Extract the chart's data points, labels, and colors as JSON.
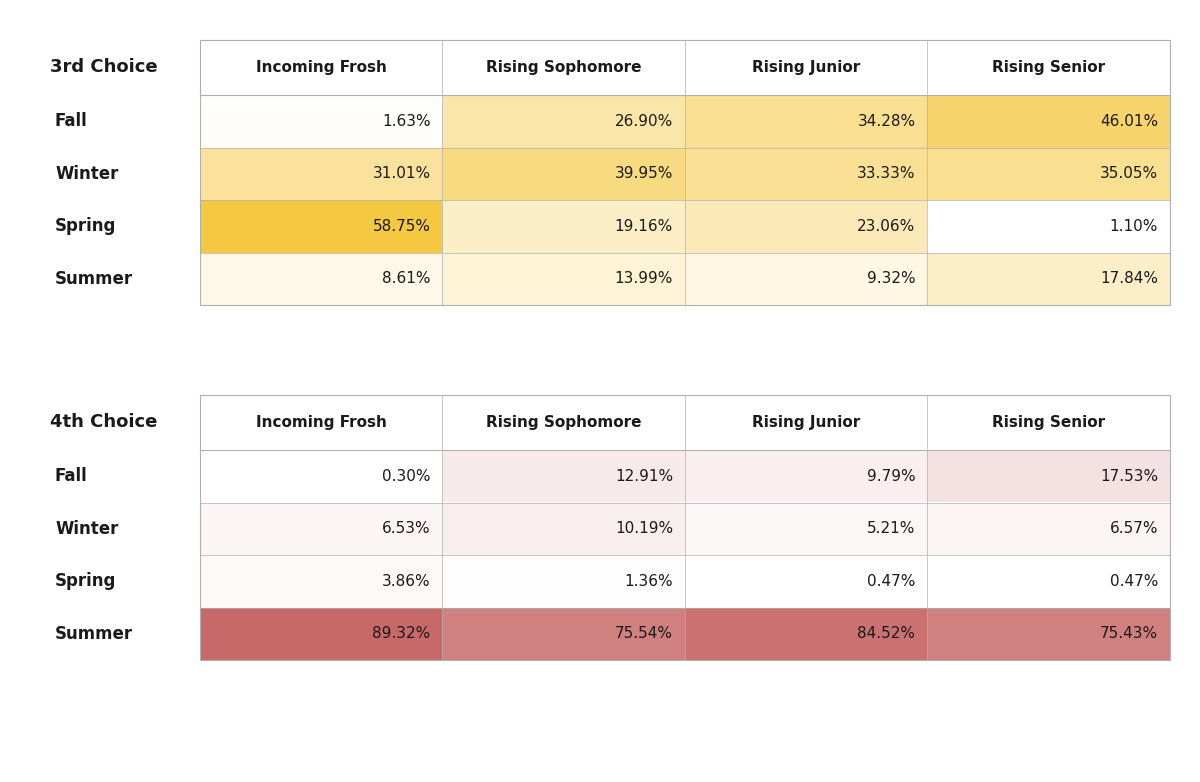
{
  "table1_title": "3rd Choice",
  "table2_title": "4th Choice",
  "columns": [
    "Incoming Frosh",
    "Rising Sophomore",
    "Rising Junior",
    "Rising Senior"
  ],
  "rows": [
    "Fall",
    "Winter",
    "Spring",
    "Summer"
  ],
  "table1_values": [
    [
      1.63,
      26.9,
      34.28,
      46.01
    ],
    [
      31.01,
      39.95,
      33.33,
      35.05
    ],
    [
      58.75,
      19.16,
      23.06,
      1.1
    ],
    [
      8.61,
      13.99,
      9.32,
      17.84
    ]
  ],
  "table2_values": [
    [
      0.3,
      12.91,
      9.79,
      17.53
    ],
    [
      6.53,
      10.19,
      5.21,
      6.57
    ],
    [
      3.86,
      1.36,
      0.47,
      0.47
    ],
    [
      89.32,
      75.54,
      84.52,
      75.43
    ]
  ],
  "background_color": "#ffffff",
  "text_color": "#1a1a1a",
  "border_color": "#b0b0b0",
  "yellow_max": [
    245,
    200,
    66
  ],
  "red_max": [
    200,
    105,
    105
  ],
  "fig_width": 12.0,
  "fig_height": 7.82,
  "dpi": 100
}
